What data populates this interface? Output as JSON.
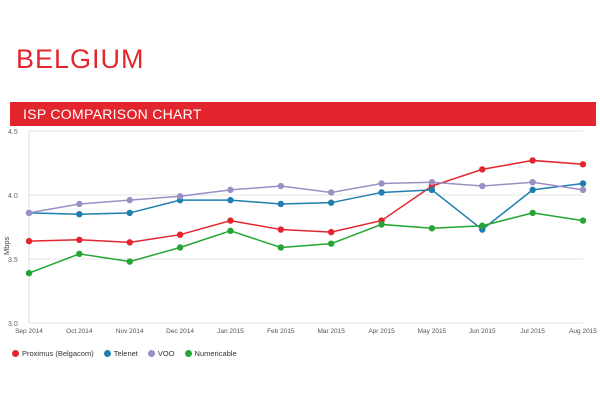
{
  "header": {
    "country": "BELGIUM",
    "banner_title": "ISP COMPARISON CHART"
  },
  "chart_data": {
    "type": "line",
    "title": "ISP COMPARISON CHART",
    "xlabel": "",
    "ylabel": "Mbps",
    "ylim": [
      3.0,
      4.5
    ],
    "yticks": [
      "3.0",
      "3.5",
      "4.0",
      "4.5"
    ],
    "grid": true,
    "legend_position": "bottom-left",
    "categories": [
      "Sep 2014",
      "Oct 2014",
      "Nov 2014",
      "Dec 2014",
      "Jan 2015",
      "Feb 2015",
      "Mar 2015",
      "Apr 2015",
      "May 2015",
      "Jun 2015",
      "Jul 2015",
      "Aug 2015"
    ],
    "series": [
      {
        "name": "Proximus (Belgacom)",
        "color": "#e3262e",
        "values": [
          3.64,
          3.65,
          3.63,
          3.69,
          3.8,
          3.73,
          3.71,
          3.8,
          4.07,
          4.2,
          4.27,
          4.24
        ]
      },
      {
        "name": "Telenet",
        "color": "#1f7fb0",
        "values": [
          3.86,
          3.85,
          3.86,
          3.96,
          3.96,
          3.93,
          3.94,
          4.02,
          4.04,
          3.73,
          4.04,
          4.09
        ]
      },
      {
        "name": "VOO",
        "color": "#9b8fc4",
        "values": [
          3.86,
          3.93,
          3.96,
          3.99,
          4.04,
          4.07,
          4.02,
          4.09,
          4.1,
          4.07,
          4.1,
          4.04
        ]
      },
      {
        "name": "Numericable",
        "color": "#25a534",
        "values": [
          3.39,
          3.54,
          3.48,
          3.59,
          3.72,
          3.59,
          3.62,
          3.77,
          3.74,
          3.76,
          3.86,
          3.8
        ]
      }
    ]
  }
}
